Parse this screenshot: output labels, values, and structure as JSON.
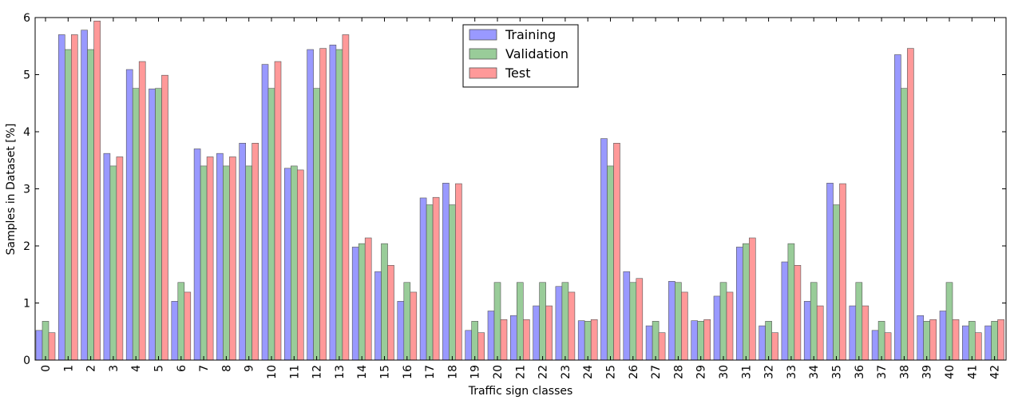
{
  "chart_data": {
    "type": "bar",
    "xlabel": "Traffic sign classes",
    "ylabel": "Samples in Dataset [%]",
    "ylim": [
      0,
      6
    ],
    "yticks": [
      "0",
      "1",
      "2",
      "3",
      "4",
      "5",
      "6"
    ],
    "legend_position": "top-center",
    "grid": false,
    "categories": [
      "0",
      "1",
      "2",
      "3",
      "4",
      "5",
      "6",
      "7",
      "8",
      "9",
      "10",
      "11",
      "12",
      "13",
      "14",
      "15",
      "16",
      "17",
      "18",
      "19",
      "20",
      "21",
      "22",
      "23",
      "24",
      "25",
      "26",
      "27",
      "28",
      "29",
      "30",
      "31",
      "32",
      "33",
      "34",
      "35",
      "36",
      "37",
      "38",
      "39",
      "40",
      "41",
      "42"
    ],
    "series": [
      {
        "name": "Training",
        "color": "#9999ff",
        "values": [
          0.52,
          5.7,
          5.78,
          3.62,
          5.09,
          4.75,
          1.03,
          3.7,
          3.62,
          3.8,
          5.18,
          3.36,
          5.44,
          5.52,
          1.98,
          1.55,
          1.03,
          2.84,
          3.1,
          0.52,
          0.86,
          0.78,
          0.95,
          1.29,
          0.69,
          3.88,
          1.55,
          0.6,
          1.38,
          0.69,
          1.12,
          1.98,
          0.6,
          1.72,
          1.03,
          3.1,
          0.95,
          0.52,
          5.35,
          0.78,
          0.86,
          0.6,
          0.6
        ]
      },
      {
        "name": "Validation",
        "color": "#99cc99",
        "values": [
          0.68,
          5.44,
          5.44,
          3.4,
          4.76,
          4.76,
          1.36,
          3.4,
          3.4,
          3.4,
          4.76,
          3.4,
          4.76,
          5.44,
          2.04,
          2.04,
          1.36,
          2.72,
          2.72,
          0.68,
          1.36,
          1.36,
          1.36,
          1.36,
          0.68,
          3.4,
          1.36,
          0.68,
          1.36,
          0.68,
          1.36,
          2.04,
          0.68,
          2.04,
          1.36,
          2.72,
          1.36,
          0.68,
          4.76,
          0.68,
          1.36,
          0.68,
          0.68
        ]
      },
      {
        "name": "Test",
        "color": "#ff9999",
        "values": [
          0.48,
          5.7,
          5.94,
          3.56,
          5.23,
          4.99,
          1.19,
          3.56,
          3.56,
          3.8,
          5.23,
          3.33,
          5.46,
          5.7,
          2.14,
          1.66,
          1.19,
          2.85,
          3.09,
          0.48,
          0.71,
          0.71,
          0.95,
          1.19,
          0.71,
          3.8,
          1.43,
          0.48,
          1.19,
          0.71,
          1.19,
          2.14,
          0.48,
          1.66,
          0.95,
          3.09,
          0.95,
          0.48,
          5.46,
          0.71,
          0.71,
          0.48,
          0.71
        ]
      }
    ]
  }
}
